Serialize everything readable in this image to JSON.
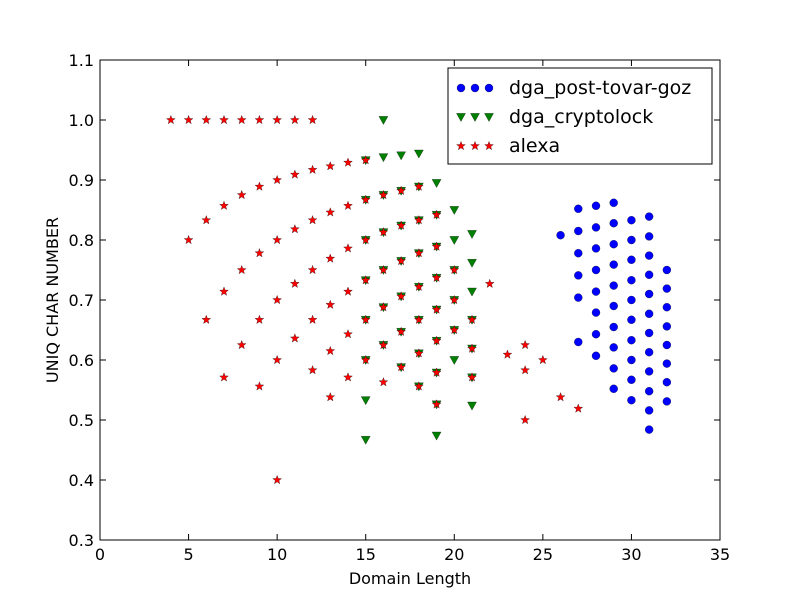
{
  "chart_data": {
    "type": "scatter",
    "xlabel": "Domain Length",
    "ylabel": "UNIQ CHAR NUMBER",
    "xlim": [
      0,
      35
    ],
    "ylim": [
      0.3,
      1.1
    ],
    "x_ticks": [
      0,
      5,
      10,
      15,
      20,
      25,
      30,
      35
    ],
    "y_ticks": [
      0.3,
      0.4,
      0.5,
      0.6,
      0.7,
      0.8,
      0.9,
      1.0,
      1.1
    ],
    "x_tick_labels": [
      "0",
      "5",
      "10",
      "15",
      "20",
      "25",
      "30",
      "35"
    ],
    "y_tick_labels": [
      "0.3",
      "0.4",
      "0.5",
      "0.6",
      "0.7",
      "0.8",
      "0.9",
      "1.0",
      "1.1"
    ],
    "grid": false,
    "legend_position": "top-right",
    "series": [
      {
        "name": "dga_post-tovar-goz",
        "marker": "circle",
        "color": "#0000ff",
        "points": [
          [
            26,
            0.808
          ],
          [
            27,
            0.852
          ],
          [
            27,
            0.815
          ],
          [
            27,
            0.778
          ],
          [
            27,
            0.741
          ],
          [
            27,
            0.704
          ],
          [
            27,
            0.63
          ],
          [
            28,
            0.857
          ],
          [
            28,
            0.821
          ],
          [
            28,
            0.786
          ],
          [
            28,
            0.75
          ],
          [
            28,
            0.714
          ],
          [
            28,
            0.679
          ],
          [
            28,
            0.643
          ],
          [
            28,
            0.607
          ],
          [
            29,
            0.862
          ],
          [
            29,
            0.828
          ],
          [
            29,
            0.793
          ],
          [
            29,
            0.759
          ],
          [
            29,
            0.724
          ],
          [
            29,
            0.69
          ],
          [
            29,
            0.655
          ],
          [
            29,
            0.621
          ],
          [
            29,
            0.586
          ],
          [
            29,
            0.552
          ],
          [
            30,
            0.833
          ],
          [
            30,
            0.8
          ],
          [
            30,
            0.767
          ],
          [
            30,
            0.733
          ],
          [
            30,
            0.7
          ],
          [
            30,
            0.667
          ],
          [
            30,
            0.633
          ],
          [
            30,
            0.6
          ],
          [
            30,
            0.567
          ],
          [
            30,
            0.533
          ],
          [
            31,
            0.839
          ],
          [
            31,
            0.806
          ],
          [
            31,
            0.774
          ],
          [
            31,
            0.742
          ],
          [
            31,
            0.71
          ],
          [
            31,
            0.677
          ],
          [
            31,
            0.645
          ],
          [
            31,
            0.613
          ],
          [
            31,
            0.581
          ],
          [
            31,
            0.548
          ],
          [
            31,
            0.516
          ],
          [
            31,
            0.484
          ],
          [
            32,
            0.75
          ],
          [
            32,
            0.719
          ],
          [
            32,
            0.688
          ],
          [
            32,
            0.656
          ],
          [
            32,
            0.625
          ],
          [
            32,
            0.594
          ],
          [
            32,
            0.563
          ],
          [
            32,
            0.531
          ]
        ]
      },
      {
        "name": "dga_cryptolock",
        "marker": "triangle-down",
        "color": "#008000",
        "points": [
          [
            15,
            0.933
          ],
          [
            15,
            0.867
          ],
          [
            15,
            0.8
          ],
          [
            15,
            0.733
          ],
          [
            15,
            0.667
          ],
          [
            15,
            0.6
          ],
          [
            15,
            0.533
          ],
          [
            15,
            0.467
          ],
          [
            16,
            1.0
          ],
          [
            16,
            0.938
          ],
          [
            16,
            0.875
          ],
          [
            16,
            0.813
          ],
          [
            16,
            0.75
          ],
          [
            16,
            0.688
          ],
          [
            16,
            0.625
          ],
          [
            17,
            0.941
          ],
          [
            17,
            0.882
          ],
          [
            17,
            0.824
          ],
          [
            17,
            0.765
          ],
          [
            17,
            0.706
          ],
          [
            17,
            0.647
          ],
          [
            17,
            0.588
          ],
          [
            18,
            0.944
          ],
          [
            18,
            0.889
          ],
          [
            18,
            0.833
          ],
          [
            18,
            0.778
          ],
          [
            18,
            0.722
          ],
          [
            18,
            0.667
          ],
          [
            18,
            0.611
          ],
          [
            18,
            0.556
          ],
          [
            19,
            0.895
          ],
          [
            19,
            0.842
          ],
          [
            19,
            0.789
          ],
          [
            19,
            0.737
          ],
          [
            19,
            0.684
          ],
          [
            19,
            0.632
          ],
          [
            19,
            0.579
          ],
          [
            19,
            0.526
          ],
          [
            19,
            0.474
          ],
          [
            20,
            0.85
          ],
          [
            20,
            0.8
          ],
          [
            20,
            0.75
          ],
          [
            20,
            0.7
          ],
          [
            20,
            0.65
          ],
          [
            20,
            0.6
          ],
          [
            21,
            0.81
          ],
          [
            21,
            0.762
          ],
          [
            21,
            0.714
          ],
          [
            21,
            0.667
          ],
          [
            21,
            0.619
          ],
          [
            21,
            0.571
          ],
          [
            21,
            0.524
          ]
        ]
      },
      {
        "name": "alexa",
        "marker": "star",
        "color": "#ff0000",
        "points": [
          [
            4,
            1.0
          ],
          [
            5,
            1.0
          ],
          [
            6,
            1.0
          ],
          [
            7,
            1.0
          ],
          [
            8,
            1.0
          ],
          [
            9,
            1.0
          ],
          [
            10,
            1.0
          ],
          [
            11,
            1.0
          ],
          [
            12,
            1.0
          ],
          [
            5,
            0.8
          ],
          [
            6,
            0.833
          ],
          [
            6,
            0.667
          ],
          [
            7,
            0.857
          ],
          [
            7,
            0.714
          ],
          [
            7,
            0.571
          ],
          [
            8,
            0.875
          ],
          [
            8,
            0.75
          ],
          [
            8,
            0.625
          ],
          [
            9,
            0.889
          ],
          [
            9,
            0.778
          ],
          [
            9,
            0.667
          ],
          [
            9,
            0.556
          ],
          [
            10,
            0.9
          ],
          [
            10,
            0.8
          ],
          [
            10,
            0.7
          ],
          [
            10,
            0.6
          ],
          [
            10,
            0.4
          ],
          [
            11,
            0.909
          ],
          [
            11,
            0.818
          ],
          [
            11,
            0.727
          ],
          [
            11,
            0.636
          ],
          [
            12,
            0.917
          ],
          [
            12,
            0.833
          ],
          [
            12,
            0.75
          ],
          [
            12,
            0.667
          ],
          [
            12,
            0.583
          ],
          [
            13,
            0.923
          ],
          [
            13,
            0.846
          ],
          [
            13,
            0.769
          ],
          [
            13,
            0.692
          ],
          [
            13,
            0.615
          ],
          [
            13,
            0.538
          ],
          [
            14,
            0.929
          ],
          [
            14,
            0.857
          ],
          [
            14,
            0.786
          ],
          [
            14,
            0.714
          ],
          [
            14,
            0.643
          ],
          [
            14,
            0.571
          ],
          [
            15,
            0.933
          ],
          [
            15,
            0.867
          ],
          [
            15,
            0.8
          ],
          [
            15,
            0.733
          ],
          [
            15,
            0.667
          ],
          [
            15,
            0.6
          ],
          [
            16,
            0.875
          ],
          [
            16,
            0.813
          ],
          [
            16,
            0.75
          ],
          [
            16,
            0.688
          ],
          [
            16,
            0.625
          ],
          [
            16,
            0.563
          ],
          [
            17,
            0.882
          ],
          [
            17,
            0.824
          ],
          [
            17,
            0.765
          ],
          [
            17,
            0.706
          ],
          [
            17,
            0.647
          ],
          [
            17,
            0.588
          ],
          [
            18,
            0.889
          ],
          [
            18,
            0.833
          ],
          [
            18,
            0.778
          ],
          [
            18,
            0.722
          ],
          [
            18,
            0.667
          ],
          [
            18,
            0.611
          ],
          [
            18,
            0.556
          ],
          [
            19,
            0.842
          ],
          [
            19,
            0.789
          ],
          [
            19,
            0.737
          ],
          [
            19,
            0.684
          ],
          [
            19,
            0.632
          ],
          [
            19,
            0.579
          ],
          [
            19,
            0.526
          ],
          [
            20,
            0.75
          ],
          [
            20,
            0.7
          ],
          [
            20,
            0.65
          ],
          [
            21,
            0.667
          ],
          [
            21,
            0.619
          ],
          [
            21,
            0.571
          ],
          [
            22,
            0.727
          ],
          [
            23,
            0.609
          ],
          [
            24,
            0.625
          ],
          [
            24,
            0.583
          ],
          [
            24,
            0.5
          ],
          [
            25,
            0.6
          ],
          [
            26,
            0.538
          ],
          [
            27,
            0.519
          ]
        ]
      }
    ]
  }
}
